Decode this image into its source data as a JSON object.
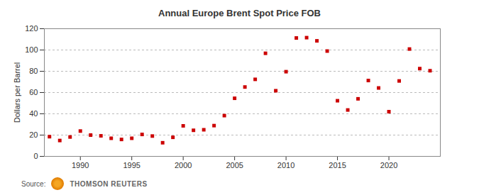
{
  "chart_data": {
    "type": "scatter",
    "title": "Annual Europe Brent Spot Price FOB",
    "y_label": "Dollars per Barrel",
    "source_label": "Source:",
    "source": "THOMSON REUTERS",
    "x": [
      1987,
      1988,
      1989,
      1990,
      1991,
      1992,
      1993,
      1994,
      1995,
      1996,
      1997,
      1998,
      1999,
      2000,
      2001,
      2002,
      2003,
      2004,
      2005,
      2006,
      2007,
      2008,
      2009,
      2010,
      2011,
      2012,
      2013,
      2014,
      2015,
      2016,
      2017,
      2018,
      2019,
      2020,
      2021,
      2022,
      2023,
      2024
    ],
    "values": [
      18.5,
      14.9,
      18.2,
      23.8,
      20.0,
      19.3,
      17.0,
      15.9,
      17.0,
      20.6,
      19.1,
      12.8,
      17.9,
      28.7,
      24.5,
      25.0,
      28.9,
      38.3,
      54.6,
      65.2,
      72.4,
      96.9,
      61.7,
      79.6,
      111.3,
      111.6,
      108.6,
      99.0,
      52.3,
      43.6,
      54.1,
      71.3,
      64.3,
      42.0,
      70.9,
      100.9,
      82.5,
      80.5
    ],
    "color": "#cc0000",
    "marker": "square",
    "xlim": [
      1986.5,
      2025
    ],
    "xticks": [
      1990,
      1995,
      2000,
      2005,
      2010,
      2015,
      2020
    ],
    "ylim": [
      0,
      120
    ],
    "yticks": [
      0,
      20,
      40,
      60,
      80,
      100,
      120
    ],
    "grid": true
  }
}
